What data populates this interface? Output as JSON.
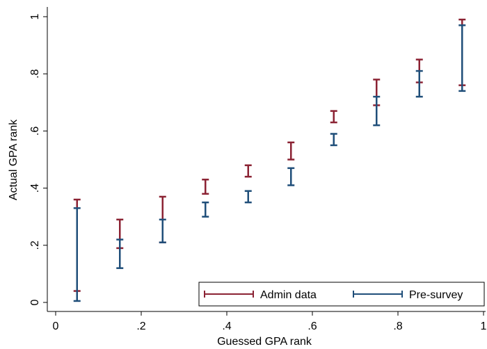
{
  "chart_data": {
    "type": "errorbar",
    "xlabel": "Guessed GPA rank",
    "ylabel": "Actual GPA rank",
    "xlim": [
      0,
      1
    ],
    "ylim": [
      0,
      1
    ],
    "x_ticks": [
      0,
      0.2,
      0.4,
      0.6,
      0.8,
      1
    ],
    "x_tick_labels": [
      "0",
      ".2",
      ".4",
      ".6",
      ".8",
      "1"
    ],
    "y_ticks": [
      0,
      0.2,
      0.4,
      0.6,
      0.8,
      1
    ],
    "y_tick_labels": [
      "0",
      ".2",
      ".4",
      ".6",
      ".8",
      "1"
    ],
    "grid": false,
    "legend_position": "bottom-right",
    "series": [
      {
        "name": "Admin data",
        "color": "#8b2233",
        "x": [
          0.05,
          0.15,
          0.25,
          0.35,
          0.45,
          0.55,
          0.65,
          0.75,
          0.85,
          0.95
        ],
        "low": [
          0.04,
          0.19,
          0.21,
          0.38,
          0.44,
          0.5,
          0.63,
          0.69,
          0.77,
          0.76
        ],
        "high": [
          0.36,
          0.29,
          0.37,
          0.43,
          0.48,
          0.56,
          0.67,
          0.78,
          0.85,
          0.99
        ]
      },
      {
        "name": "Pre-survey",
        "color": "#1f4e79",
        "x": [
          0.05,
          0.15,
          0.25,
          0.35,
          0.45,
          0.55,
          0.65,
          0.75,
          0.85,
          0.95
        ],
        "low": [
          0.005,
          0.12,
          0.21,
          0.3,
          0.35,
          0.41,
          0.55,
          0.62,
          0.72,
          0.74
        ],
        "high": [
          0.33,
          0.22,
          0.29,
          0.35,
          0.39,
          0.47,
          0.59,
          0.72,
          0.81,
          0.97
        ]
      }
    ]
  }
}
